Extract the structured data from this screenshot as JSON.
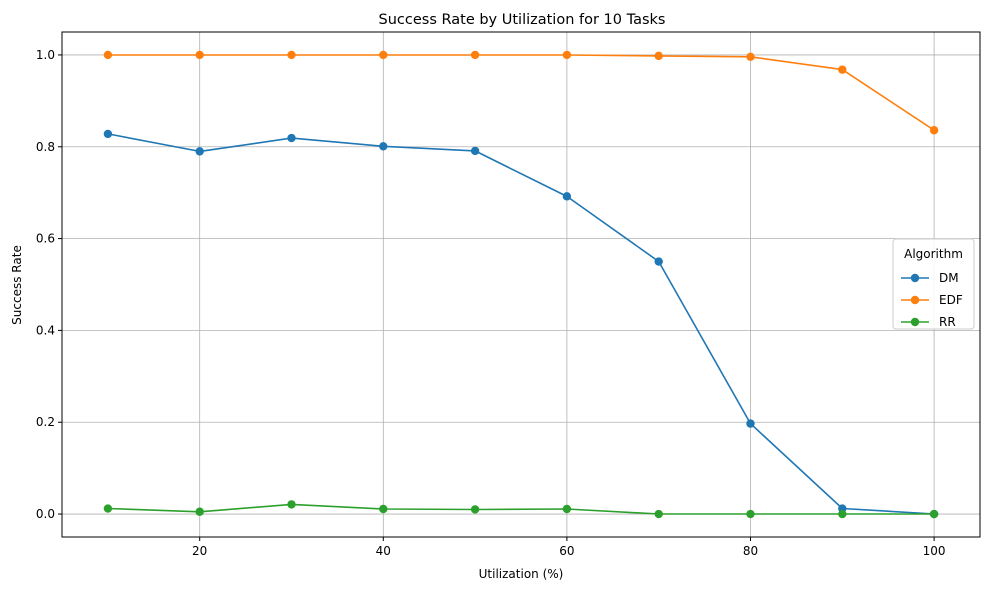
{
  "chart_data": {
    "type": "line",
    "title": "Success Rate by Utilization for 10 Tasks",
    "xlabel": "Utilization (%)",
    "ylabel": "Success Rate",
    "x": [
      10,
      20,
      30,
      40,
      50,
      60,
      70,
      80,
      90,
      100
    ],
    "xlim": [
      5,
      105
    ],
    "ylim": [
      -0.05,
      1.05
    ],
    "xticks": [
      20,
      40,
      60,
      80,
      100
    ],
    "xtick_labels": [
      "20",
      "40",
      "60",
      "80",
      "100"
    ],
    "yticks": [
      0.0,
      0.2,
      0.4,
      0.6,
      0.8,
      1.0
    ],
    "ytick_labels": [
      "0.0",
      "0.2",
      "0.4",
      "0.6",
      "0.8",
      "1.0"
    ],
    "grid": true,
    "legend": {
      "title": "Algorithm",
      "placement": "center-right"
    },
    "series": [
      {
        "name": "DM",
        "color": "#1f77b4",
        "marker": "circle",
        "values": [
          0.828,
          0.79,
          0.819,
          0.801,
          0.791,
          0.692,
          0.55,
          0.197,
          0.012,
          0.0
        ]
      },
      {
        "name": "EDF",
        "color": "#ff7f0e",
        "marker": "circle",
        "values": [
          1.0,
          1.0,
          1.0,
          1.0,
          1.0,
          1.0,
          0.998,
          0.996,
          0.968,
          0.836
        ]
      },
      {
        "name": "RR",
        "color": "#2ca02c",
        "marker": "circle",
        "values": [
          0.012,
          0.005,
          0.021,
          0.011,
          0.01,
          0.011,
          0.0,
          0.0,
          0.0,
          0.0
        ]
      }
    ]
  }
}
